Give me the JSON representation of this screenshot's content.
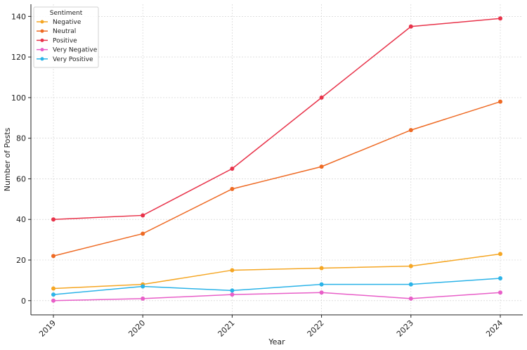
{
  "chart_data": {
    "type": "line",
    "x": [
      "2019",
      "2020",
      "2021",
      "2022",
      "2023",
      "2024"
    ],
    "xlabel": "Year",
    "ylabel": "Number of Posts",
    "ylim": [
      -7,
      146
    ],
    "yticks": [
      0,
      20,
      40,
      60,
      80,
      100,
      120,
      140
    ],
    "grid": true,
    "legend": {
      "title": "Sentiment",
      "position": "top-left"
    },
    "series": [
      {
        "name": "Negative",
        "color": "#f5a623",
        "values": [
          6,
          8,
          15,
          16,
          17,
          23
        ]
      },
      {
        "name": "Neutral",
        "color": "#ee6a24",
        "values": [
          22,
          33,
          55,
          66,
          84,
          98
        ]
      },
      {
        "name": "Positive",
        "color": "#e8334a",
        "values": [
          40,
          42,
          65,
          100,
          135,
          139
        ]
      },
      {
        "name": "Very Negative",
        "color": "#e85ec8",
        "values": [
          0,
          1,
          3,
          4,
          1,
          4
        ]
      },
      {
        "name": "Very Positive",
        "color": "#2bb3e8",
        "values": [
          3,
          7,
          5,
          8,
          8,
          11
        ]
      }
    ]
  }
}
